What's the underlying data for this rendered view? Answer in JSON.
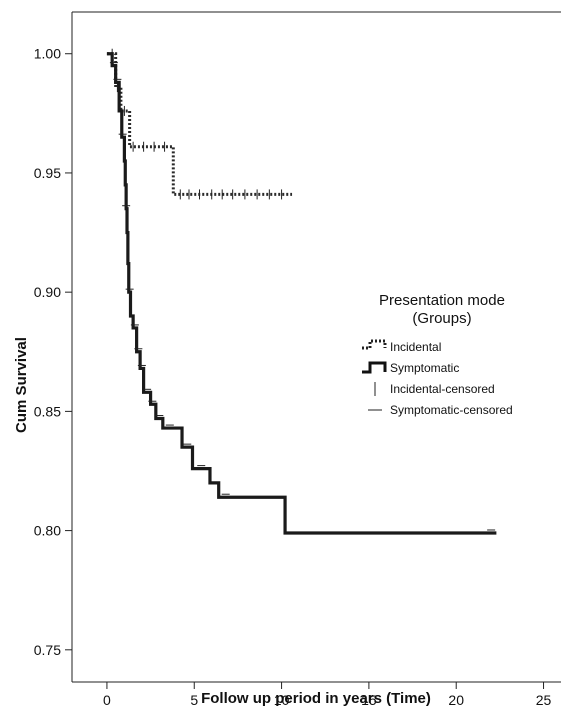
{
  "chart_data": {
    "type": "line",
    "xlabel": "Follow up period in years (Time)",
    "ylabel": "Cum Survival",
    "xlim": [
      -2,
      26
    ],
    "ylim": [
      0.7365,
      1.0175
    ],
    "xticks": [
      0,
      5,
      10,
      15,
      20,
      25
    ],
    "xtick_labels": [
      "0",
      "5",
      "10",
      "15",
      "20",
      "25"
    ],
    "yticks": [
      0.75,
      0.8,
      0.85,
      0.9,
      0.95,
      1.0
    ],
    "ytick_labels": [
      "0.75",
      "0.80",
      "0.85",
      "0.90",
      "0.95",
      "1.00"
    ],
    "legend": {
      "title_line1": "Presentation mode",
      "title_line2": "(Groups)",
      "entries": [
        "Incidental",
        "Symptomatic",
        "Incidental-censored",
        "Symptomatic-censored"
      ],
      "placement": "right"
    },
    "series": [
      {
        "name": "Incidental",
        "style": "dotted-step",
        "color": "#2a2a2a",
        "steps": [
          [
            0,
            1.0
          ],
          [
            0.5,
            0.986
          ],
          [
            0.8,
            0.976
          ],
          [
            1.3,
            0.961
          ],
          [
            3.8,
            0.941
          ],
          [
            10.6,
            0.941
          ]
        ],
        "censored_x": [
          0.3,
          0.6,
          1.0,
          1.5,
          2.1,
          2.7,
          3.3,
          4.2,
          4.7,
          5.3,
          6.0,
          6.6,
          7.2,
          7.9,
          8.6,
          9.3,
          10.0
        ]
      },
      {
        "name": "Symptomatic",
        "style": "solid-step",
        "color": "#1a1a1a",
        "steps": [
          [
            0,
            1.0
          ],
          [
            0.3,
            0.995
          ],
          [
            0.5,
            0.988
          ],
          [
            0.7,
            0.976
          ],
          [
            0.85,
            0.965
          ],
          [
            1.0,
            0.955
          ],
          [
            1.05,
            0.945
          ],
          [
            1.1,
            0.935
          ],
          [
            1.15,
            0.925
          ],
          [
            1.2,
            0.912
          ],
          [
            1.25,
            0.9
          ],
          [
            1.35,
            0.89
          ],
          [
            1.5,
            0.885
          ],
          [
            1.7,
            0.875
          ],
          [
            1.9,
            0.868
          ],
          [
            2.1,
            0.858
          ],
          [
            2.5,
            0.853
          ],
          [
            2.8,
            0.847
          ],
          [
            3.2,
            0.843
          ],
          [
            4.3,
            0.835
          ],
          [
            4.9,
            0.826
          ],
          [
            5.9,
            0.82
          ],
          [
            6.4,
            0.814
          ],
          [
            10.2,
            0.799
          ],
          [
            22.3,
            0.799
          ]
        ],
        "censored_x": [
          0.4,
          0.6,
          0.9,
          1.1,
          1.3,
          1.6,
          1.8,
          2.0,
          2.3,
          2.6,
          3.0,
          3.6,
          4.6,
          5.4,
          6.8,
          22.0
        ]
      }
    ]
  }
}
